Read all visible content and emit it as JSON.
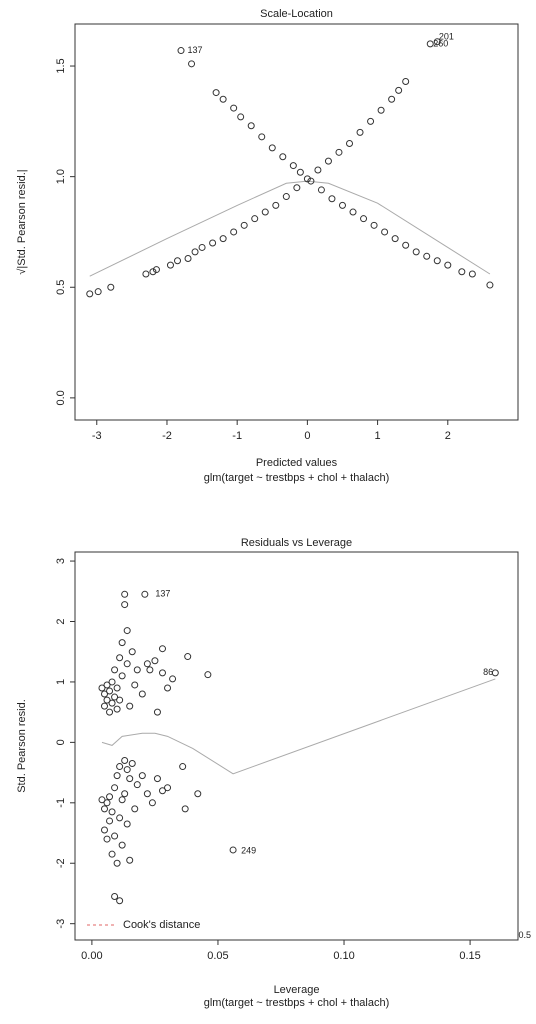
{
  "chart_data": [
    {
      "type": "scatter",
      "title": "Scale-Location",
      "x_label": "Predicted values",
      "subtitle": "glm(target ~ trestbps + chol + thalach)",
      "y_label": "√|Std. Pearson resid.|",
      "color": "#333333",
      "x": [
        -3.1,
        -2.98,
        -2.8,
        -2.3,
        -2.2,
        -2.15,
        -1.95,
        -1.85,
        -1.7,
        -1.6,
        -1.5,
        -1.35,
        -1.2,
        -1.05,
        -0.9,
        -0.75,
        -0.6,
        -0.45,
        -0.3,
        -0.15,
        0,
        0.15,
        0.3,
        0.45,
        0.6,
        0.75,
        0.9,
        1.05,
        1.2,
        1.3,
        1.4,
        -1.65,
        -1.3,
        -1.2,
        -1.05,
        -0.95,
        -0.8,
        -0.65,
        -0.5,
        -0.35,
        -0.2,
        -0.1,
        0.05,
        0.2,
        0.35,
        0.5,
        0.65,
        0.8,
        0.95,
        1.1,
        1.25,
        1.4,
        1.55,
        1.7,
        1.85,
        2.0,
        2.2,
        2.35,
        2.6,
        -1.8,
        1.75,
        1.85
      ],
      "y": [
        0.47,
        0.48,
        0.5,
        0.56,
        0.57,
        0.58,
        0.6,
        0.62,
        0.63,
        0.66,
        0.68,
        0.7,
        0.72,
        0.75,
        0.78,
        0.81,
        0.84,
        0.87,
        0.91,
        0.95,
        0.99,
        1.03,
        1.07,
        1.11,
        1.15,
        1.2,
        1.25,
        1.3,
        1.35,
        1.39,
        1.43,
        1.51,
        1.38,
        1.35,
        1.31,
        1.27,
        1.23,
        1.18,
        1.13,
        1.09,
        1.05,
        1.02,
        0.98,
        0.94,
        0.9,
        0.87,
        0.84,
        0.81,
        0.78,
        0.75,
        0.72,
        0.69,
        0.66,
        0.64,
        0.62,
        0.6,
        0.57,
        0.56,
        0.51,
        1.57,
        1.6,
        1.61
      ],
      "smooth": {
        "color": "#aaaaaa",
        "x": [
          -3.1,
          -2,
          -1,
          -0.3,
          0,
          0.3,
          1,
          2,
          2.6
        ],
        "y": [
          0.55,
          0.72,
          0.87,
          0.97,
          0.98,
          0.97,
          0.88,
          0.68,
          0.56
        ]
      },
      "annotations": [
        {
          "text": "137",
          "x": -1.75,
          "y": 1.57
        },
        {
          "text": "201",
          "x": 1.83,
          "y": 1.63
        },
        {
          "text": "260",
          "x": 1.75,
          "y": 1.6
        }
      ],
      "xlim": [
        -3.31,
        3.0
      ],
      "ylim": [
        -0.1,
        1.69
      ],
      "xticks": [
        -3,
        -2,
        -1,
        0,
        1,
        2
      ],
      "yticks": [
        {
          "value": 0,
          "label": "0.0"
        },
        {
          "value": 0.5,
          "label": "0.5"
        },
        {
          "value": 1,
          "label": "1.0"
        },
        {
          "value": 1.5,
          "label": "1.5"
        }
      ]
    },
    {
      "type": "scatter",
      "title": "Residuals vs Leverage",
      "x_label": "Leverage",
      "subtitle": "glm(target ~ trestbps + chol + thalach)",
      "y_label": "Std. Pearson resid.",
      "color": "#333333",
      "x": [
        0.004,
        0.005,
        0.005,
        0.006,
        0.006,
        0.007,
        0.007,
        0.008,
        0.008,
        0.009,
        0.009,
        0.01,
        0.01,
        0.011,
        0.011,
        0.012,
        0.012,
        0.013,
        0.013,
        0.014,
        0.014,
        0.015,
        0.016,
        0.017,
        0.018,
        0.02,
        0.022,
        0.023,
        0.025,
        0.028,
        0.028,
        0.03,
        0.032,
        0.038,
        0.046,
        0.026,
        0.021,
        0.16,
        0.004,
        0.005,
        0.005,
        0.006,
        0.006,
        0.007,
        0.007,
        0.008,
        0.008,
        0.009,
        0.009,
        0.01,
        0.01,
        0.011,
        0.011,
        0.012,
        0.012,
        0.013,
        0.013,
        0.014,
        0.014,
        0.015,
        0.015,
        0.016,
        0.017,
        0.018,
        0.02,
        0.022,
        0.024,
        0.026,
        0.028,
        0.03,
        0.036,
        0.037,
        0.042,
        0.009,
        0.011,
        0.056
      ],
      "y": [
        0.9,
        0.8,
        0.6,
        0.95,
        0.7,
        0.85,
        0.5,
        1.0,
        0.65,
        0.75,
        1.2,
        0.9,
        0.55,
        1.4,
        0.7,
        1.65,
        1.1,
        2.28,
        2.45,
        1.85,
        1.3,
        0.6,
        1.5,
        0.95,
        1.2,
        0.8,
        1.3,
        1.2,
        1.35,
        1.55,
        1.15,
        0.9,
        1.05,
        1.42,
        1.12,
        0.5,
        2.45,
        1.15,
        -0.95,
        -1.1,
        -1.45,
        -1.0,
        -1.6,
        -0.9,
        -1.3,
        -1.85,
        -1.15,
        -0.75,
        -1.55,
        -2.0,
        -0.55,
        -1.25,
        -0.4,
        -0.95,
        -1.7,
        -0.3,
        -0.85,
        -0.45,
        -1.35,
        -1.95,
        -0.6,
        -0.35,
        -1.1,
        -0.7,
        -0.55,
        -0.85,
        -1.0,
        -0.6,
        -0.8,
        -0.75,
        -0.4,
        -1.1,
        -0.85,
        -2.55,
        -2.62,
        -1.78
      ],
      "smooth": {
        "color": "#aaaaaa",
        "x": [
          0.004,
          0.008,
          0.012,
          0.02,
          0.025,
          0.03,
          0.04,
          0.056,
          0.16
        ],
        "y": [
          0,
          -0.05,
          0.1,
          0.15,
          0.15,
          0.1,
          -0.1,
          -0.52,
          1.05
        ]
      },
      "annotations": [
        {
          "text": "137",
          "x": 0.024,
          "y": 2.45
        },
        {
          "text": "86",
          "x": 0.154,
          "y": 1.15
        },
        {
          "text": "249",
          "x": 0.058,
          "y": -1.8
        },
        {
          "text": "0.5",
          "x": 0.168,
          "y": -3.2
        }
      ],
      "legend_text": "Cook's distance",
      "legend_color": "#e06666",
      "xlim": [
        -0.0067,
        0.169
      ],
      "ylim": [
        -3.27,
        3.15
      ],
      "xticks": [
        {
          "value": 0,
          "label": "0.00"
        },
        {
          "value": 0.05,
          "label": "0.05"
        },
        {
          "value": 0.1,
          "label": "0.10"
        },
        {
          "value": 0.15,
          "label": "0.15"
        }
      ],
      "yticks": [
        -3,
        -2,
        -1,
        0,
        1,
        2,
        3
      ]
    }
  ]
}
